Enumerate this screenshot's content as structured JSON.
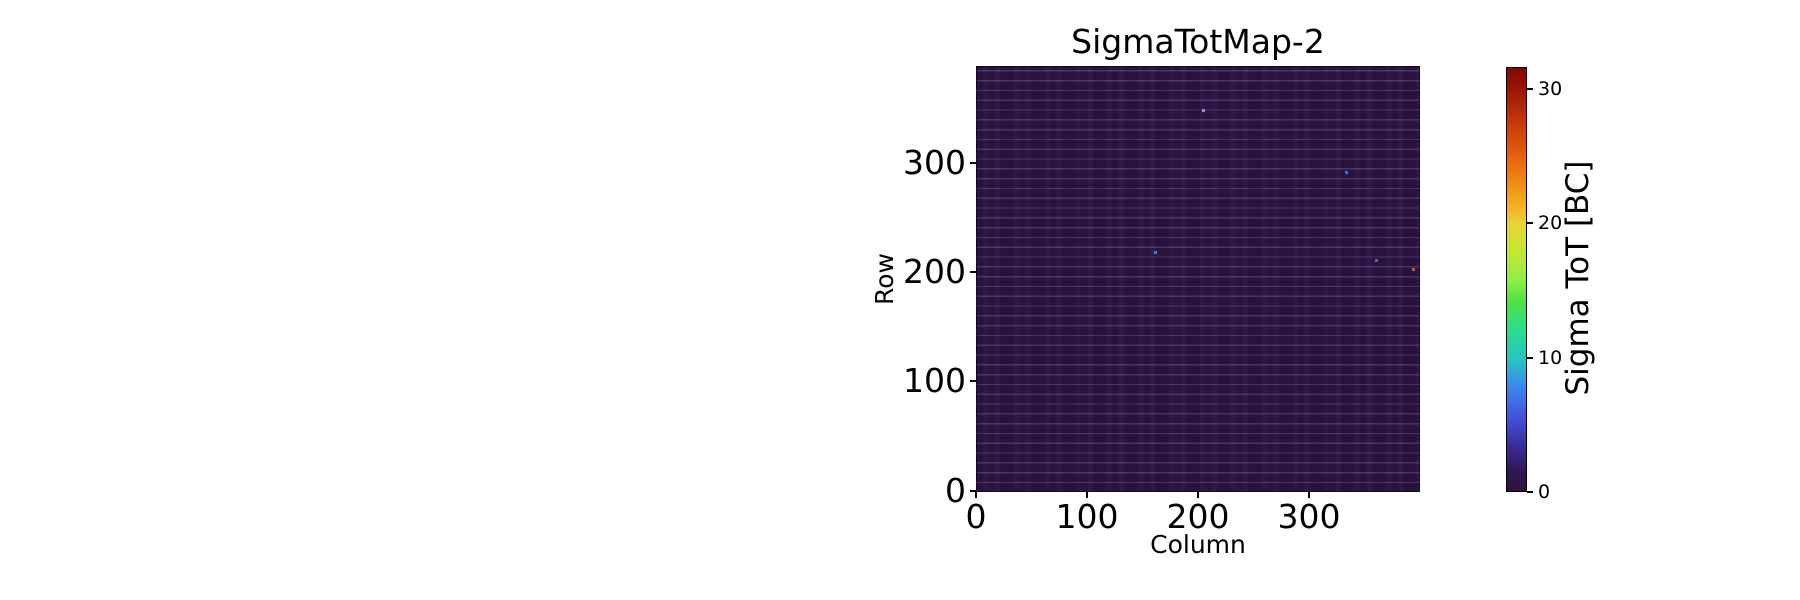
{
  "chart_data": {
    "type": "heatmap",
    "title": "SigmaTotMap-2",
    "xlabel": "Column",
    "ylabel": "Row",
    "x_range": [
      0,
      400
    ],
    "y_range": [
      0,
      384
    ],
    "x_ticks": [
      0,
      100,
      200,
      300
    ],
    "y_ticks": [
      0,
      100,
      200,
      300
    ],
    "grid": false,
    "body": {
      "description": "Nearly uniform map of sigma ToT per pixel; almost all pixels have a very low value (~0-2 BC) rendered as dark purple, with faint slightly-lighter speckled horizontal stripes every ~8 rows (core-row boundaries).",
      "base_color": "#2b143e",
      "stripe_color": "#6352b0",
      "stripe_period_rows": 8
    },
    "outlier_pixels": [
      {
        "col": 205,
        "row": 348,
        "pixel_color": "#9b8fd4"
      },
      {
        "col": 334,
        "row": 291,
        "pixel_color": "#4169e1"
      },
      {
        "col": 162,
        "row": 218,
        "pixel_color": "#3f7ae8"
      },
      {
        "col": 361,
        "row": 210,
        "pixel_color": "#4a5fd0"
      },
      {
        "col": 394,
        "row": 202,
        "pixel_color": "#d2571c"
      }
    ],
    "colorbar": {
      "label": "Sigma ToT [BC]",
      "ticks": [
        0,
        10,
        20,
        30
      ],
      "vmin": 0,
      "vmax": 31.6,
      "colormap": "turbo",
      "gradient_stops": [
        [
          0.0,
          "#30123b"
        ],
        [
          0.04,
          "#2e1650"
        ],
        [
          0.1,
          "#39298f"
        ],
        [
          0.17,
          "#4152d8"
        ],
        [
          0.24,
          "#3c82f0"
        ],
        [
          0.31,
          "#27c3c3"
        ],
        [
          0.38,
          "#28dd90"
        ],
        [
          0.45,
          "#52e142"
        ],
        [
          0.5,
          "#90ee44"
        ],
        [
          0.57,
          "#c8e62e"
        ],
        [
          0.63,
          "#e8d434"
        ],
        [
          0.66,
          "#f1bb2a"
        ],
        [
          0.72,
          "#f19112"
        ],
        [
          0.8,
          "#e25c0e"
        ],
        [
          0.88,
          "#c4340a"
        ],
        [
          0.95,
          "#9c1507"
        ],
        [
          1.0,
          "#7c0a04"
        ]
      ]
    }
  }
}
